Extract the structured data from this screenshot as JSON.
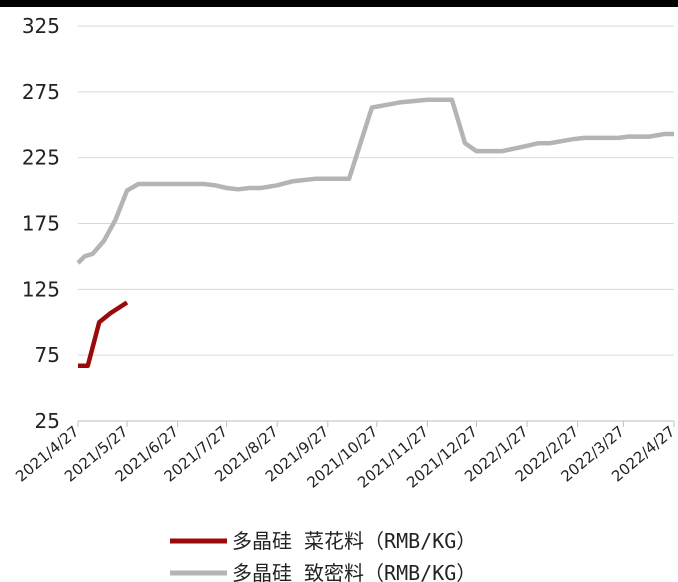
{
  "chart_data": {
    "type": "line",
    "ylim": [
      25,
      325
    ],
    "y_ticks": [
      "325",
      "275",
      "225",
      "175",
      "125",
      "75",
      "25"
    ],
    "x_ticks": [
      "2021/4/27",
      "2021/5/27",
      "2021/6/27",
      "2021/7/27",
      "2021/8/27",
      "2021/9/27",
      "2021/10/27",
      "2021/11/27",
      "2021/12/27",
      "2022/1/27",
      "2022/2/27",
      "2022/3/27",
      "2022/4/27"
    ],
    "grid": true,
    "legend_position": "bottom",
    "series": [
      {
        "name": "多晶硅 菜花料（RMB/KG）",
        "color": "#9b0a0a",
        "x": [
          "2021/4/27",
          "2021/5/3",
          "2021/5/10",
          "2021/5/17",
          "2021/5/27"
        ],
        "values": [
          67,
          67,
          100,
          107,
          115
        ]
      },
      {
        "name": "多晶硅 致密料（RMB/KG）",
        "color": "#b4b4b4",
        "x": [
          "2021/4/27",
          "2021/5/1",
          "2021/5/6",
          "2021/5/13",
          "2021/5/20",
          "2021/5/27",
          "2021/6/3",
          "2021/6/10",
          "2021/6/27",
          "2021/7/13",
          "2021/7/20",
          "2021/7/27",
          "2021/8/3",
          "2021/8/10",
          "2021/8/17",
          "2021/8/27",
          "2021/9/5",
          "2021/9/12",
          "2021/9/20",
          "2021/10/10",
          "2021/10/24",
          "2021/11/10",
          "2021/11/27",
          "2021/12/12",
          "2021/12/20",
          "2021/12/27",
          "2022/1/6",
          "2022/1/12",
          "2022/1/27",
          "2022/2/3",
          "2022/2/10",
          "2022/2/24",
          "2022/3/3",
          "2022/3/24",
          "2022/3/30",
          "2022/4/6",
          "2022/4/12",
          "2022/4/21",
          "2022/4/27"
        ],
        "values": [
          145,
          150,
          152,
          162,
          178,
          200,
          205,
          205,
          205,
          205,
          204,
          202,
          201,
          202,
          202,
          204,
          207,
          208,
          209,
          209,
          263,
          267,
          269,
          269,
          236,
          230,
          230,
          230,
          234,
          236,
          236,
          239,
          240,
          240,
          241,
          241,
          241,
          243,
          243
        ]
      }
    ]
  }
}
